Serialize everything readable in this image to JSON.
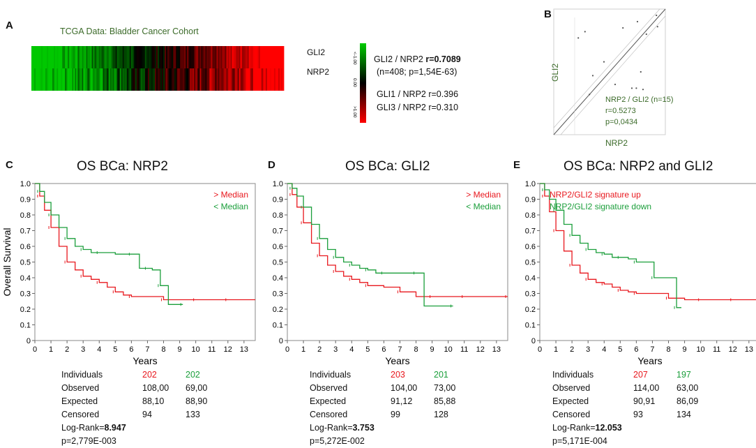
{
  "panel_a": {
    "label": "A",
    "title": "TCGA Data: Bladder Cancer Cohort",
    "row_labels": [
      "GLI2",
      "NRP2"
    ],
    "colorbar": {
      "top": "<-1.00",
      "mid": "0.00",
      "bottom": ">1.00",
      "colors": {
        "low": "#00cc00",
        "mid": "#000000",
        "high": "#ff0000"
      }
    },
    "corr_main_prefix": "GLI2 / NRP2 ",
    "corr_main_value": "r=0.7089",
    "corr_main_stats": "(n=408; p=1,54E-63)",
    "corr_other": [
      "GLI1 / NRP2 r=0.396",
      "GLI3 / NRP2 r=0.310"
    ]
  },
  "panel_b": {
    "label": "B",
    "ylabel": "GLI2",
    "xlabel": "NRP2",
    "annotation": [
      "NRP2 / GLI2 (n=15)",
      "r=0.5273",
      "p=0,0434"
    ]
  },
  "common": {
    "xlabel": "Years",
    "ylabel": "Overall Survival",
    "stat_labels": [
      "Individuals",
      "Observed",
      "Expected",
      "Censored"
    ]
  },
  "panels_km": [
    {
      "label": "C",
      "title": "OS BCa: NRP2",
      "legend": [
        "> Median",
        "< Median"
      ],
      "stats": {
        "individuals": [
          "202",
          "202"
        ],
        "observed": [
          "108,00",
          "69,00"
        ],
        "expected": [
          "88,10",
          "88,90"
        ],
        "censored": [
          "94",
          "133"
        ],
        "logrank_label": "Log-Rank=",
        "logrank_value": "8.947",
        "p": "p=2,779E-003"
      }
    },
    {
      "label": "D",
      "title": "OS BCa: GLI2",
      "legend": [
        "> Median",
        "< Median"
      ],
      "stats": {
        "individuals": [
          "203",
          "201"
        ],
        "observed": [
          "104,00",
          "73,00"
        ],
        "expected": [
          "91,12",
          "85,88"
        ],
        "censored": [
          "99",
          "128"
        ],
        "logrank_label": "Log-Rank=",
        "logrank_value": "3.753",
        "p": "p=5,272E-002"
      }
    },
    {
      "label": "E",
      "title": "OS BCa: NRP2 and GLI2",
      "legend": [
        "NRP2/GLI2 signature up",
        "NRP2/GLI2 signature down"
      ],
      "stats": {
        "individuals": [
          "207",
          "197"
        ],
        "observed": [
          "114,00",
          "63,00"
        ],
        "expected": [
          "90,91",
          "86,09"
        ],
        "censored": [
          "93",
          "134"
        ],
        "logrank_label": "Log-Rank=",
        "logrank_value": "12.053",
        "p": "p=5,171E-004"
      }
    }
  ],
  "chart_data": [
    {
      "type": "heatmap",
      "title": "TCGA Data: Bladder Cancer Cohort",
      "rows": [
        "GLI2",
        "NRP2"
      ],
      "scale": [
        -1.0,
        0.0,
        1.0
      ],
      "n": 408,
      "r": 0.7089
    },
    {
      "type": "scatter",
      "xlabel": "NRP2",
      "ylabel": "GLI2",
      "points": [
        [
          0.22,
          0.77
        ],
        [
          0.28,
          0.82
        ],
        [
          0.35,
          0.47
        ],
        [
          0.32,
          0.32
        ],
        [
          0.55,
          0.4
        ],
        [
          0.62,
          0.85
        ],
        [
          0.75,
          0.9
        ],
        [
          0.83,
          0.8
        ],
        [
          0.78,
          0.5
        ],
        [
          0.7,
          0.37
        ],
        [
          0.74,
          0.37
        ],
        [
          0.8,
          0.36
        ],
        [
          0.92,
          0.95
        ],
        [
          0.93,
          0.86
        ],
        [
          0.45,
          0.58
        ]
      ]
    },
    {
      "type": "line",
      "title": "OS BCa: NRP2",
      "xlabel": "Years",
      "ylabel": "Overall Survival",
      "xlim": [
        0,
        13.7
      ],
      "ylim": [
        0,
        1.0
      ],
      "xticks": [
        0,
        1,
        2,
        3,
        4,
        5,
        6,
        7,
        8,
        9,
        10,
        11,
        12,
        13
      ],
      "yticks": [
        0,
        0.1,
        0.2,
        0.3,
        0.4,
        0.5,
        0.6,
        0.7,
        0.8,
        0.9,
        1.0
      ],
      "series": [
        {
          "name": "> Median",
          "color": "#e8171d",
          "x": [
            0,
            0.3,
            0.6,
            1,
            1.5,
            2,
            2.5,
            3,
            3.5,
            4,
            4.5,
            5,
            5.5,
            6,
            7,
            8,
            9,
            10,
            11,
            12,
            13.7
          ],
          "values": [
            1,
            0.92,
            0.83,
            0.72,
            0.6,
            0.5,
            0.45,
            0.41,
            0.39,
            0.37,
            0.34,
            0.31,
            0.29,
            0.28,
            0.28,
            0.26,
            0.26,
            0.26,
            0.26,
            0.26,
            0.26
          ]
        },
        {
          "name": "< Median",
          "color": "#1a9e3a",
          "x": [
            0,
            0.3,
            0.6,
            1,
            1.5,
            2,
            2.5,
            3,
            3.5,
            4,
            5,
            6,
            6.5,
            7,
            7.3,
            7.8,
            8.3,
            9.2
          ],
          "values": [
            1,
            0.95,
            0.88,
            0.8,
            0.72,
            0.65,
            0.6,
            0.58,
            0.56,
            0.56,
            0.55,
            0.55,
            0.46,
            0.46,
            0.45,
            0.35,
            0.23,
            0.23
          ]
        }
      ]
    },
    {
      "type": "line",
      "title": "OS BCa: GLI2",
      "xlabel": "Years",
      "ylabel": "Overall Survival",
      "xlim": [
        0,
        13.7
      ],
      "ylim": [
        0,
        1.0
      ],
      "xticks": [
        0,
        1,
        2,
        3,
        4,
        5,
        6,
        7,
        8,
        9,
        10,
        11,
        12,
        13
      ],
      "yticks": [
        0,
        0.1,
        0.2,
        0.3,
        0.4,
        0.5,
        0.6,
        0.7,
        0.8,
        0.9,
        1.0
      ],
      "series": [
        {
          "name": "> Median",
          "color": "#e8171d",
          "x": [
            0,
            0.3,
            0.6,
            1,
            1.5,
            2,
            2.5,
            3,
            3.5,
            4,
            4.5,
            5,
            6,
            7,
            8,
            9,
            10,
            11,
            12,
            13.7
          ],
          "values": [
            1,
            0.93,
            0.85,
            0.75,
            0.62,
            0.54,
            0.48,
            0.44,
            0.41,
            0.39,
            0.37,
            0.35,
            0.34,
            0.31,
            0.28,
            0.28,
            0.28,
            0.28,
            0.28,
            0.28
          ]
        },
        {
          "name": "< Median",
          "color": "#1a9e3a",
          "x": [
            0,
            0.3,
            0.6,
            1,
            1.5,
            2,
            2.5,
            3,
            3.5,
            4,
            4.5,
            5,
            5.5,
            6,
            7,
            8,
            8.5,
            10.3
          ],
          "values": [
            1,
            0.97,
            0.92,
            0.85,
            0.74,
            0.65,
            0.58,
            0.53,
            0.5,
            0.48,
            0.46,
            0.45,
            0.43,
            0.43,
            0.43,
            0.43,
            0.22,
            0.22
          ]
        }
      ]
    },
    {
      "type": "line",
      "title": "OS BCa: NRP2 and GLI2",
      "xlabel": "Years",
      "ylabel": "Overall Survival",
      "xlim": [
        0,
        13.7
      ],
      "ylim": [
        0,
        1.0
      ],
      "xticks": [
        0,
        1,
        2,
        3,
        4,
        5,
        6,
        7,
        8,
        9,
        10,
        11,
        12,
        13
      ],
      "yticks": [
        0,
        0.1,
        0.2,
        0.3,
        0.4,
        0.5,
        0.6,
        0.7,
        0.8,
        0.9,
        1.0
      ],
      "series": [
        {
          "name": "NRP2/GLI2 signature up",
          "color": "#e8171d",
          "x": [
            0,
            0.3,
            0.6,
            1,
            1.5,
            2,
            2.5,
            3,
            3.5,
            4,
            4.5,
            5,
            5.5,
            6,
            7,
            8,
            9,
            10,
            11,
            12,
            13.7
          ],
          "values": [
            1,
            0.92,
            0.82,
            0.7,
            0.57,
            0.48,
            0.43,
            0.39,
            0.37,
            0.36,
            0.34,
            0.32,
            0.31,
            0.3,
            0.3,
            0.27,
            0.26,
            0.26,
            0.26,
            0.26,
            0.26
          ]
        },
        {
          "name": "NRP2/GLI2 signature down",
          "color": "#1a9e3a",
          "x": [
            0,
            0.3,
            0.6,
            1,
            1.5,
            2,
            2.5,
            3,
            3.5,
            4,
            4.5,
            5,
            5.5,
            6,
            6.8,
            7.1,
            8,
            8.5,
            8.8
          ],
          "values": [
            1,
            0.96,
            0.9,
            0.83,
            0.74,
            0.67,
            0.62,
            0.58,
            0.56,
            0.55,
            0.53,
            0.53,
            0.52,
            0.5,
            0.5,
            0.4,
            0.4,
            0.21,
            0.21
          ]
        }
      ]
    }
  ]
}
